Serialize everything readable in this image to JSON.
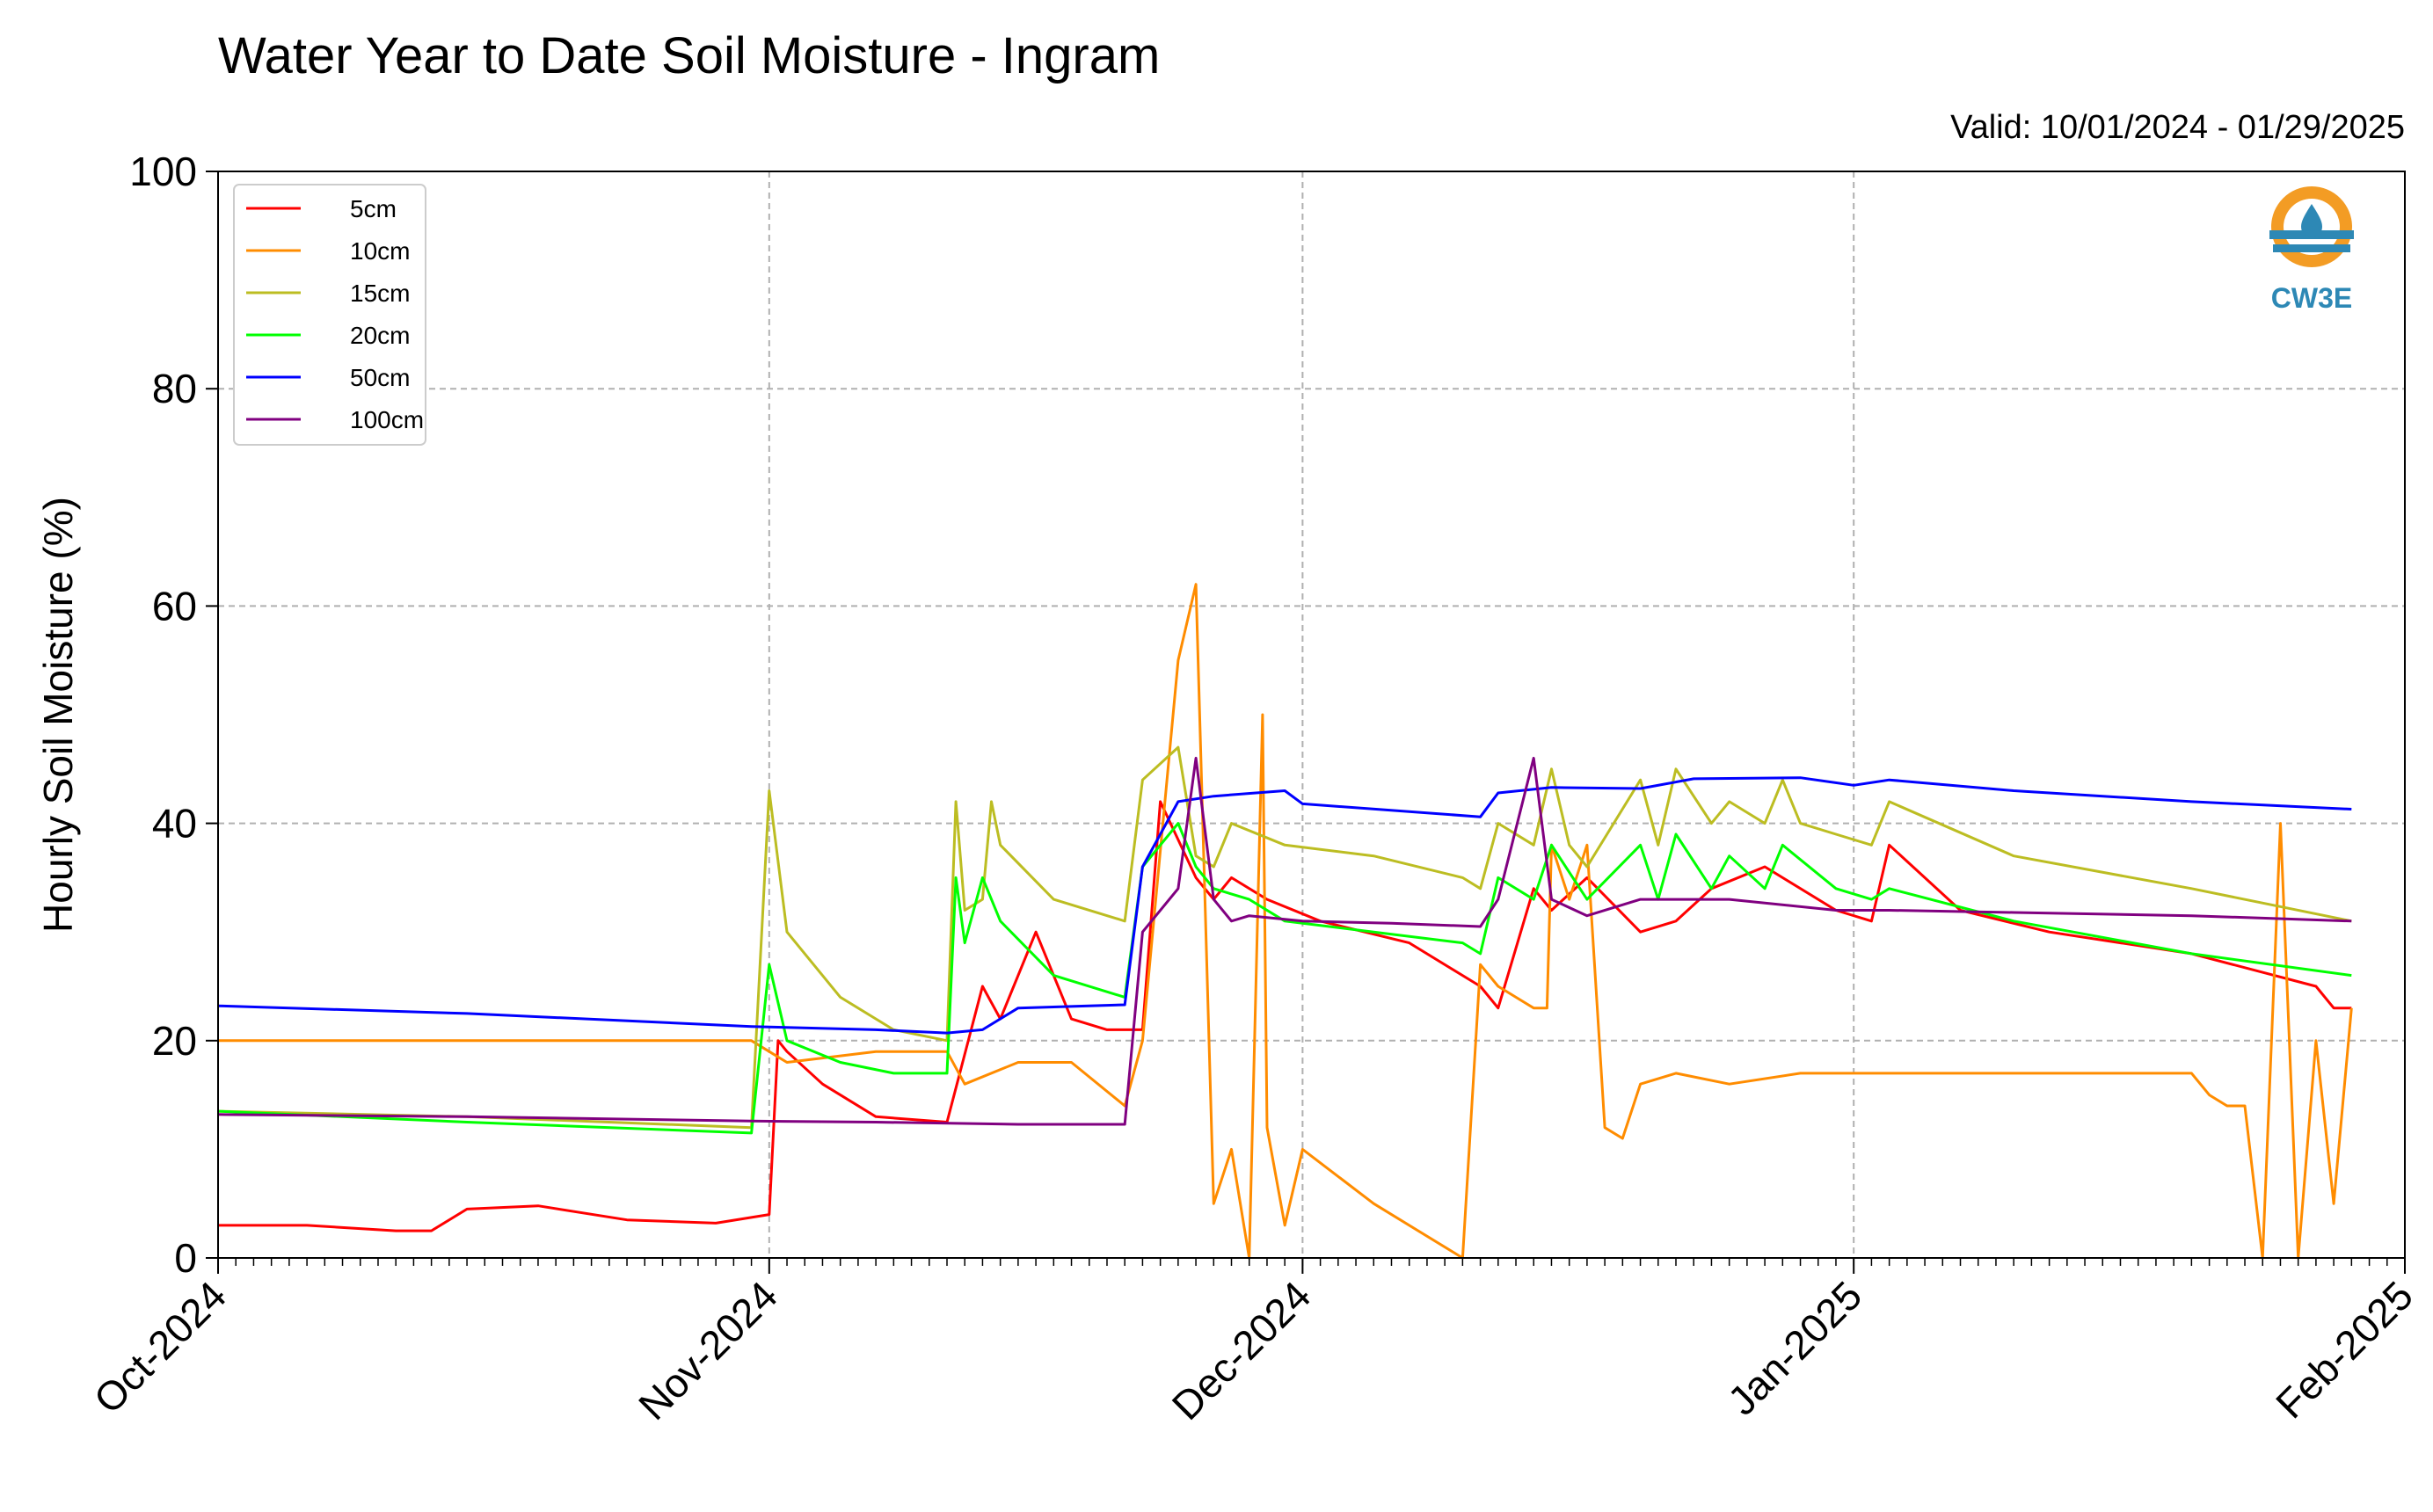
{
  "chart_data": {
    "type": "line",
    "title": "Water Year to Date Soil Moisture - Ingram",
    "subtitle": "Valid: 10/01/2024 - 01/29/2025",
    "xlabel": "",
    "ylabel": "Hourly Soil Moisture (%)",
    "xlim": [
      "2024-10-01",
      "2025-02-01"
    ],
    "ylim": [
      0,
      100
    ],
    "yticks": [
      0,
      20,
      40,
      60,
      80,
      100
    ],
    "xticks": [
      "Oct-2024",
      "Nov-2024",
      "Dec-2024",
      "Jan-2025",
      "Feb-2025"
    ],
    "xtick_dates": [
      "2024-10-01",
      "2024-11-01",
      "2024-12-01",
      "2025-01-01",
      "2025-02-01"
    ],
    "grid": true,
    "legend_position": "upper-left",
    "logo_text": "CW3E",
    "series": [
      {
        "name": "5cm",
        "color": "#ff0000",
        "x": [
          "2024-10-01",
          "2024-10-06",
          "2024-10-11",
          "2024-10-13",
          "2024-10-15",
          "2024-10-19",
          "2024-10-24",
          "2024-10-29",
          "2024-11-01",
          "2024-11-01T12",
          "2024-11-02",
          "2024-11-04",
          "2024-11-07",
          "2024-11-11",
          "2024-11-13",
          "2024-11-14",
          "2024-11-16",
          "2024-11-18",
          "2024-11-20",
          "2024-11-22",
          "2024-11-23",
          "2024-11-25",
          "2024-11-26",
          "2024-11-27",
          "2024-11-29",
          "2024-12-02",
          "2024-12-07",
          "2024-12-11",
          "2024-12-12",
          "2024-12-14",
          "2024-12-15",
          "2024-12-17",
          "2024-12-20",
          "2024-12-22",
          "2024-12-24",
          "2024-12-27",
          "2024-12-31",
          "2025-01-02",
          "2025-01-03",
          "2025-01-07",
          "2025-01-12",
          "2025-01-20",
          "2025-01-27",
          "2025-01-28",
          "2025-01-29"
        ],
        "y": [
          3,
          3,
          2.5,
          2.5,
          4.5,
          4.8,
          3.5,
          3.2,
          4,
          20,
          19,
          16,
          13,
          12.5,
          25,
          22,
          30,
          22,
          21,
          21,
          42,
          35,
          33,
          35,
          33,
          31,
          29,
          25,
          23,
          34,
          32,
          35,
          30,
          31,
          34,
          36,
          32,
          31,
          38,
          32,
          30,
          28,
          25,
          23,
          23
        ]
      },
      {
        "name": "10cm",
        "color": "#ff8c00",
        "x": [
          "2024-10-01",
          "2024-10-15",
          "2024-10-31",
          "2024-11-01",
          "2024-11-02",
          "2024-11-07",
          "2024-11-11",
          "2024-11-12",
          "2024-11-15",
          "2024-11-16",
          "2024-11-18",
          "2024-11-21",
          "2024-11-22",
          "2024-11-24",
          "2024-11-25",
          "2024-11-26",
          "2024-11-27",
          "2024-11-28",
          "2024-11-28T18",
          "2024-11-29",
          "2024-11-30",
          "2024-12-01",
          "2024-12-05",
          "2024-12-10",
          "2024-12-11",
          "2024-12-12",
          "2024-12-13",
          "2024-12-14",
          "2024-12-14T18",
          "2024-12-15",
          "2024-12-16",
          "2024-12-17",
          "2024-12-18",
          "2024-12-19",
          "2024-12-20",
          "2024-12-22",
          "2024-12-25",
          "2024-12-29",
          "2024-12-31",
          "2025-01-05",
          "2025-01-10",
          "2025-01-15",
          "2025-01-20",
          "2025-01-21",
          "2025-01-22",
          "2025-01-23",
          "2025-01-24",
          "2025-01-25",
          "2025-01-26",
          "2025-01-27",
          "2025-01-28",
          "2025-01-29"
        ],
        "y": [
          20,
          20,
          20,
          19,
          18,
          19,
          19,
          16,
          18,
          18,
          18,
          14,
          20,
          55,
          62,
          5,
          10,
          0,
          50,
          12,
          3,
          10,
          5,
          0,
          27,
          25,
          24,
          23,
          23,
          38,
          33,
          38,
          12,
          11,
          16,
          17,
          16,
          17,
          17,
          17,
          17,
          17,
          17,
          15,
          14,
          14,
          0,
          40,
          0,
          20,
          5,
          23
        ]
      },
      {
        "name": "15cm",
        "color": "#bcbd22",
        "x": [
          "2024-10-01",
          "2024-10-15",
          "2024-10-31",
          "2024-11-01",
          "2024-11-02",
          "2024-11-05",
          "2024-11-08",
          "2024-11-11",
          "2024-11-11T12",
          "2024-11-12",
          "2024-11-13",
          "2024-11-13T12",
          "2024-11-14",
          "2024-11-17",
          "2024-11-21",
          "2024-11-22",
          "2024-11-24",
          "2024-11-25",
          "2024-11-26",
          "2024-11-27",
          "2024-11-30",
          "2024-12-05",
          "2024-12-10",
          "2024-12-11",
          "2024-12-12",
          "2024-12-14",
          "2024-12-15",
          "2024-12-16",
          "2024-12-17",
          "2024-12-20",
          "2024-12-21",
          "2024-12-22",
          "2024-12-24",
          "2024-12-25",
          "2024-12-27",
          "2024-12-28",
          "2024-12-29",
          "2024-12-31",
          "2025-01-02",
          "2025-01-03",
          "2025-01-10",
          "2025-01-20",
          "2025-01-29"
        ],
        "y": [
          13.5,
          13,
          12,
          43,
          30,
          24,
          21,
          20,
          42,
          32,
          33,
          42,
          38,
          33,
          31,
          44,
          47,
          37,
          36,
          40,
          38,
          37,
          35,
          34,
          40,
          38,
          45,
          38,
          36,
          44,
          38,
          45,
          40,
          42,
          40,
          44,
          40,
          39,
          38,
          42,
          37,
          34,
          31
        ]
      },
      {
        "name": "20cm",
        "color": "#00ff00",
        "x": [
          "2024-10-01",
          "2024-10-15",
          "2024-10-31",
          "2024-11-01",
          "2024-11-02",
          "2024-11-05",
          "2024-11-08",
          "2024-11-11",
          "2024-11-11T12",
          "2024-11-12",
          "2024-11-13",
          "2024-11-14",
          "2024-11-17",
          "2024-11-21",
          "2024-11-22",
          "2024-11-24",
          "2024-11-25",
          "2024-11-26",
          "2024-11-28",
          "2024-11-30",
          "2024-12-05",
          "2024-12-10",
          "2024-12-11",
          "2024-12-12",
          "2024-12-14",
          "2024-12-15",
          "2024-12-17",
          "2024-12-20",
          "2024-12-21",
          "2024-12-22",
          "2024-12-24",
          "2024-12-25",
          "2024-12-27",
          "2024-12-28",
          "2024-12-31",
          "2025-01-02",
          "2025-01-03",
          "2025-01-10",
          "2025-01-20",
          "2025-01-29"
        ],
        "y": [
          13.5,
          12.5,
          11.5,
          27,
          20,
          18,
          17,
          17,
          35,
          29,
          35,
          31,
          26,
          24,
          36,
          40,
          36,
          34,
          33,
          31,
          30,
          29,
          28,
          35,
          33,
          38,
          33,
          38,
          33,
          39,
          34,
          37,
          34,
          38,
          34,
          33,
          34,
          31,
          28,
          26
        ]
      },
      {
        "name": "50cm",
        "color": "#0000ff",
        "x": [
          "2024-10-01",
          "2024-10-15",
          "2024-10-31",
          "2024-11-07",
          "2024-11-11",
          "2024-11-13",
          "2024-11-15",
          "2024-11-21",
          "2024-11-22",
          "2024-11-24",
          "2024-11-26",
          "2024-11-30",
          "2024-12-01",
          "2024-12-11",
          "2024-12-12",
          "2024-12-15",
          "2024-12-20",
          "2024-12-23",
          "2024-12-29",
          "2025-01-01",
          "2025-01-03",
          "2025-01-10",
          "2025-01-20",
          "2025-01-29"
        ],
        "y": [
          23.2,
          22.5,
          21.3,
          21,
          20.7,
          21,
          23,
          23.3,
          36,
          42,
          42.5,
          43,
          41.8,
          40.6,
          42.8,
          43.3,
          43.2,
          44.1,
          44.2,
          43.5,
          44,
          43,
          42,
          41.3
        ]
      },
      {
        "name": "100cm",
        "color": "#800080",
        "x": [
          "2024-10-01",
          "2024-10-15",
          "2024-10-31",
          "2024-11-07",
          "2024-11-15",
          "2024-11-21",
          "2024-11-22",
          "2024-11-24",
          "2024-11-25",
          "2024-11-26",
          "2024-11-27",
          "2024-11-28",
          "2024-12-01",
          "2024-12-06",
          "2024-12-11",
          "2024-12-12",
          "2024-12-14",
          "2024-12-15",
          "2024-12-17",
          "2024-12-20",
          "2024-12-22",
          "2024-12-25",
          "2024-12-31",
          "2025-01-03",
          "2025-01-10",
          "2025-01-20",
          "2025-01-29"
        ],
        "y": [
          13.2,
          13,
          12.6,
          12.5,
          12.3,
          12.3,
          30,
          34,
          46,
          33,
          31,
          31.5,
          31,
          30.8,
          30.5,
          33,
          46,
          33,
          31.5,
          33,
          33,
          33,
          32,
          32,
          31.8,
          31.5,
          31
        ]
      }
    ]
  }
}
